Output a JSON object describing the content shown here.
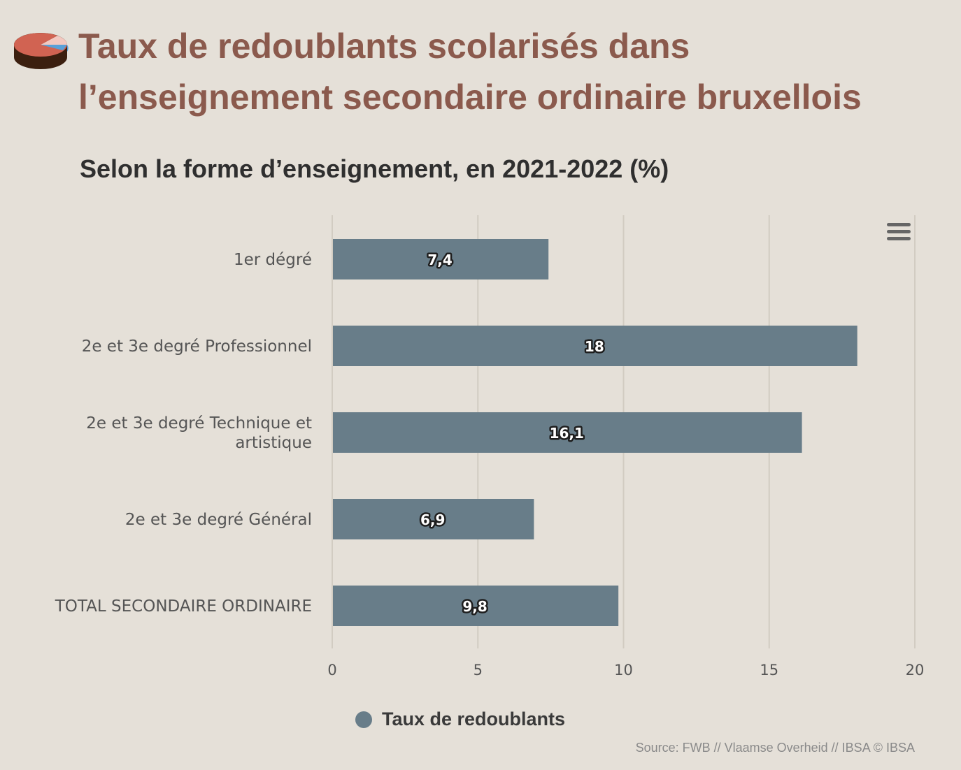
{
  "title_lines": [
    "Taux de redoublants scolarisés dans",
    "l’enseignement secondaire ordinaire bruxellois"
  ],
  "subtitle": "Selon la forme d’enseignement, en 2021-2022 (%)",
  "menu_icon": "hamburger-menu-icon",
  "logo_icon": "pie-chart-icon",
  "colors": {
    "background": "#e5e0d8",
    "title": "#8b5a4d",
    "bar": "#687d89",
    "grid": "#d2ccc2"
  },
  "chart_data": {
    "type": "bar",
    "orientation": "horizontal",
    "categories": [
      "1er dégré",
      "2e et 3e degré Professionnel",
      "2e et 3e degré Technique et artistique",
      "2e et 3e degré Général",
      "TOTAL SECONDAIRE ORDINAIRE"
    ],
    "series": [
      {
        "name": "Taux de redoublants",
        "values": [
          7.4,
          18,
          16.1,
          6.9,
          9.8
        ]
      }
    ],
    "data_labels": [
      "7,4",
      "18",
      "16,1",
      "6,9",
      "9,8"
    ],
    "xlim": [
      0,
      20
    ],
    "x_ticks": [
      0,
      5,
      10,
      15,
      20
    ],
    "grid": true,
    "legend_position": "bottom"
  },
  "legend": {
    "label": "Taux de redoublants"
  },
  "source": "Source: FWB // Vlaamse Overheid // IBSA © IBSA"
}
